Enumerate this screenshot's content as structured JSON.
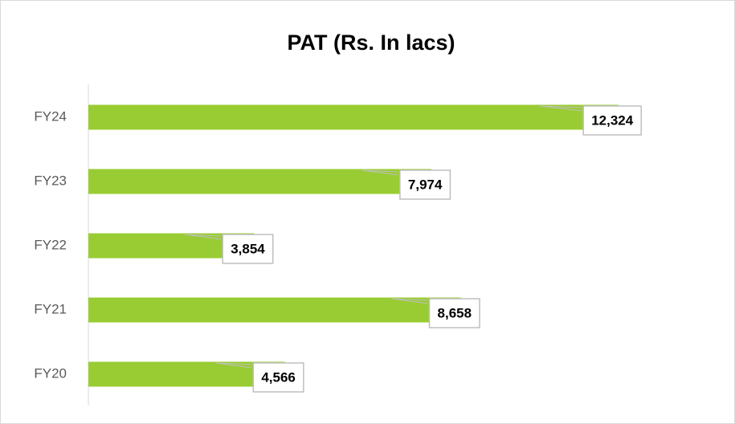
{
  "chart_data": {
    "type": "bar",
    "orientation": "horizontal",
    "title": "PAT (Rs. In lacs)",
    "categories": [
      "FY24",
      "FY23",
      "FY22",
      "FY21",
      "FY20"
    ],
    "values": [
      12324,
      7974,
      3854,
      8658,
      4566
    ],
    "value_labels": [
      "12,324",
      "7,974",
      "3,854",
      "8,658",
      "4,566"
    ],
    "color": "#99cc33",
    "xlim": [
      0,
      14000
    ]
  }
}
